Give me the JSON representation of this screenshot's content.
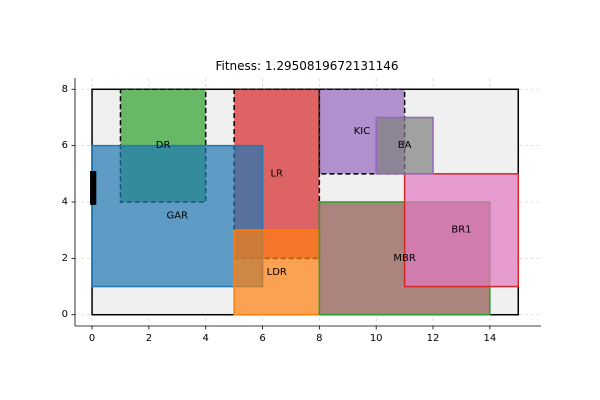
{
  "chart_data": {
    "type": "rectangle-layout",
    "title": "Fitness: 1.2950819672131146",
    "xlabel": "",
    "ylabel": "",
    "xlim": [
      -0.6,
      15.8
    ],
    "ylim": [
      -0.4,
      8.4
    ],
    "x_ticks": [
      0,
      2,
      4,
      6,
      8,
      10,
      12,
      14
    ],
    "y_ticks": [
      0,
      2,
      4,
      6,
      8
    ],
    "grid": true,
    "boundary": {
      "x": [
        0,
        15
      ],
      "y": [
        0,
        8
      ],
      "fill": "#f0f0f0",
      "edge": "#000000"
    },
    "entrance": {
      "x": [
        0,
        0.15
      ],
      "y": [
        3.9,
        5.1
      ],
      "color": "#000000"
    },
    "rooms": [
      {
        "name": "DR",
        "x": [
          1,
          4
        ],
        "y": [
          4,
          8
        ],
        "fill": "#2ca02c",
        "alpha": 0.7,
        "edge": "#000000",
        "dashed": true,
        "label_at": [
          2.5,
          6
        ]
      },
      {
        "name": "LR",
        "x": [
          5,
          8
        ],
        "y": [
          2,
          8
        ],
        "fill": "#d62728",
        "alpha": 0.7,
        "edge": "#000000",
        "dashed": true,
        "label_at": [
          6.5,
          5
        ]
      },
      {
        "name": "KIC",
        "x": [
          8,
          11
        ],
        "y": [
          5,
          8
        ],
        "fill": "#9467bd",
        "alpha": 0.7,
        "edge": "#000000",
        "dashed": true,
        "label_at": [
          9.5,
          6.5
        ]
      },
      {
        "name": "GAR",
        "x": [
          0,
          6
        ],
        "y": [
          1,
          6
        ],
        "fill": "#1f77b4",
        "alpha": 0.7,
        "edge": "#1f77b4",
        "dashed": false,
        "label_at": [
          3,
          3.5
        ]
      },
      {
        "name": "LDR",
        "x": [
          5,
          8
        ],
        "y": [
          0,
          3
        ],
        "fill": "#ff7f0e",
        "alpha": 0.7,
        "edge": "#ff7f0e",
        "dashed": false,
        "label_at": [
          6.5,
          1.5
        ]
      },
      {
        "name": "MBR",
        "x": [
          8,
          14
        ],
        "y": [
          0,
          4
        ],
        "fill": "#8c564b",
        "alpha": 0.7,
        "edge": "#2ca02c",
        "dashed": false,
        "label_at": [
          11,
          2
        ]
      },
      {
        "name": "BR1",
        "x": [
          11,
          15
        ],
        "y": [
          1,
          5
        ],
        "fill": "#e377c2",
        "alpha": 0.7,
        "edge": "#d62728",
        "dashed": false,
        "label_at": [
          13,
          3
        ]
      },
      {
        "name": "BA",
        "x": [
          10,
          12
        ],
        "y": [
          5,
          7
        ],
        "fill": "#7f7f7f",
        "alpha": 0.7,
        "edge": "#9467bd",
        "dashed": false,
        "label_at": [
          11,
          6
        ]
      }
    ]
  }
}
